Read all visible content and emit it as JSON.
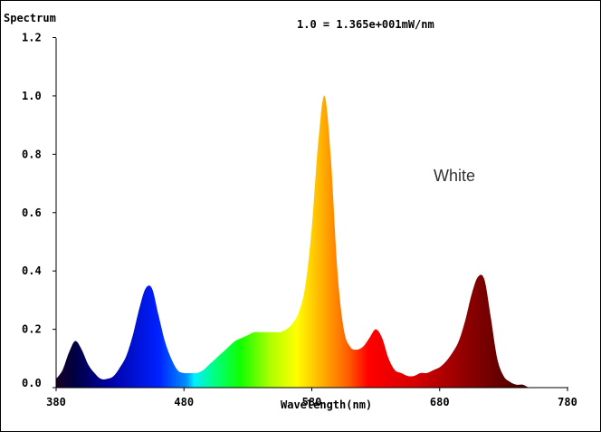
{
  "chart_data": {
    "type": "area",
    "title": "",
    "ylabel": "Spectrum",
    "xlabel": "Wavelength(nm)",
    "annotation": "1.0 = 1.365e+001mW/nm",
    "xlim": [
      380,
      780
    ],
    "ylim": [
      0,
      1.2
    ],
    "x_ticks": [
      "380",
      "480",
      "580",
      "680",
      "780"
    ],
    "y_ticks": [
      "0.0",
      "0.2",
      "0.4",
      "0.6",
      "0.8",
      "1.0",
      "1.2"
    ],
    "grid": false,
    "legend": {
      "position": "right",
      "entries": [
        "White"
      ]
    },
    "series": [
      {
        "name": "White",
        "fill": "wavelength-color-gradient",
        "x": [
          380,
          385,
          390,
          395,
          400,
          405,
          410,
          415,
          420,
          425,
          430,
          435,
          440,
          445,
          450,
          455,
          460,
          465,
          470,
          475,
          480,
          485,
          490,
          495,
          500,
          505,
          510,
          515,
          520,
          525,
          530,
          535,
          540,
          545,
          550,
          555,
          560,
          565,
          570,
          575,
          580,
          585,
          590,
          595,
          600,
          605,
          610,
          615,
          620,
          625,
          630,
          635,
          640,
          645,
          650,
          655,
          660,
          665,
          670,
          675,
          680,
          685,
          690,
          695,
          700,
          705,
          710,
          715,
          720,
          725,
          730,
          735,
          740,
          745,
          750,
          755,
          760,
          765,
          770,
          775,
          780
        ],
        "values": [
          0.03,
          0.06,
          0.12,
          0.16,
          0.13,
          0.08,
          0.05,
          0.03,
          0.03,
          0.04,
          0.07,
          0.11,
          0.18,
          0.27,
          0.34,
          0.34,
          0.25,
          0.16,
          0.1,
          0.06,
          0.05,
          0.05,
          0.05,
          0.06,
          0.08,
          0.1,
          0.12,
          0.14,
          0.16,
          0.17,
          0.18,
          0.19,
          0.19,
          0.19,
          0.19,
          0.19,
          0.2,
          0.22,
          0.26,
          0.35,
          0.55,
          0.84,
          1.0,
          0.78,
          0.4,
          0.2,
          0.14,
          0.13,
          0.14,
          0.17,
          0.2,
          0.17,
          0.1,
          0.06,
          0.05,
          0.04,
          0.04,
          0.05,
          0.05,
          0.06,
          0.07,
          0.09,
          0.12,
          0.16,
          0.23,
          0.32,
          0.38,
          0.37,
          0.24,
          0.1,
          0.04,
          0.02,
          0.01,
          0.01,
          0.0,
          0.0,
          0.0,
          0.0,
          0.0,
          0.0,
          0.0
        ]
      }
    ]
  }
}
